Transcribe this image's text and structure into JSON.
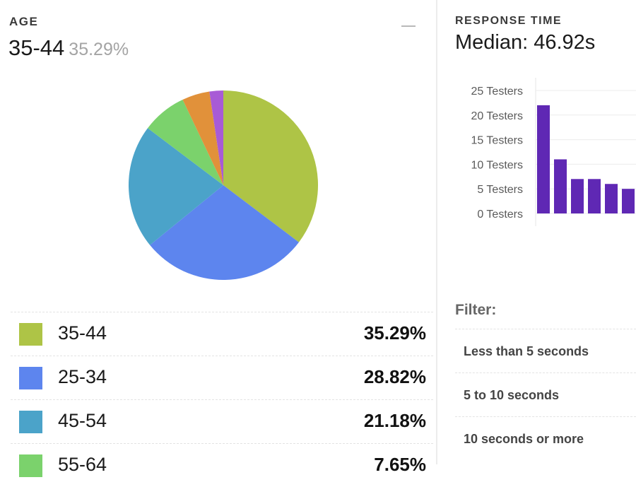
{
  "age": {
    "title": "AGE",
    "selected_group": "35-44",
    "selected_percent": "35.29%",
    "legend": [
      {
        "label": "35-44",
        "value": "35.29%",
        "color": "#aec446"
      },
      {
        "label": "25-34",
        "value": "28.82%",
        "color": "#5d85ee"
      },
      {
        "label": "45-54",
        "value": "21.18%",
        "color": "#4ba3c9"
      },
      {
        "label": "55-64",
        "value": "7.65%",
        "color": "#7bd26c"
      }
    ]
  },
  "response_time": {
    "title": "RESPONSE TIME",
    "median": "Median: 46.92s"
  },
  "filter": {
    "title": "Filter:",
    "options": [
      "Less than 5 seconds",
      "5 to 10 seconds",
      "10 seconds or more"
    ]
  },
  "chart_data": [
    {
      "type": "pie",
      "title": "AGE",
      "categories": [
        "35-44",
        "25-34",
        "45-54",
        "55-64",
        "",
        ""
      ],
      "values": [
        35.29,
        28.82,
        21.18,
        7.65,
        4.71,
        2.35
      ],
      "colors": [
        "#aec446",
        "#5d85ee",
        "#4ba3c9",
        "#7bd26c",
        "#e1913a",
        "#a85bd6"
      ]
    },
    {
      "type": "bar",
      "title": "RESPONSE TIME",
      "values": [
        22,
        11,
        7,
        7,
        6,
        5
      ],
      "color": "#5f28b4",
      "ylim": [
        0,
        25
      ],
      "yticks": [
        {
          "value": 25,
          "label": "25 Testers"
        },
        {
          "value": 20,
          "label": "20 Testers"
        },
        {
          "value": 15,
          "label": "15 Testers"
        },
        {
          "value": 10,
          "label": "10 Testers"
        },
        {
          "value": 5,
          "label": "5 Testers"
        },
        {
          "value": 0,
          "label": "0 Testers"
        }
      ],
      "grid": true
    }
  ]
}
